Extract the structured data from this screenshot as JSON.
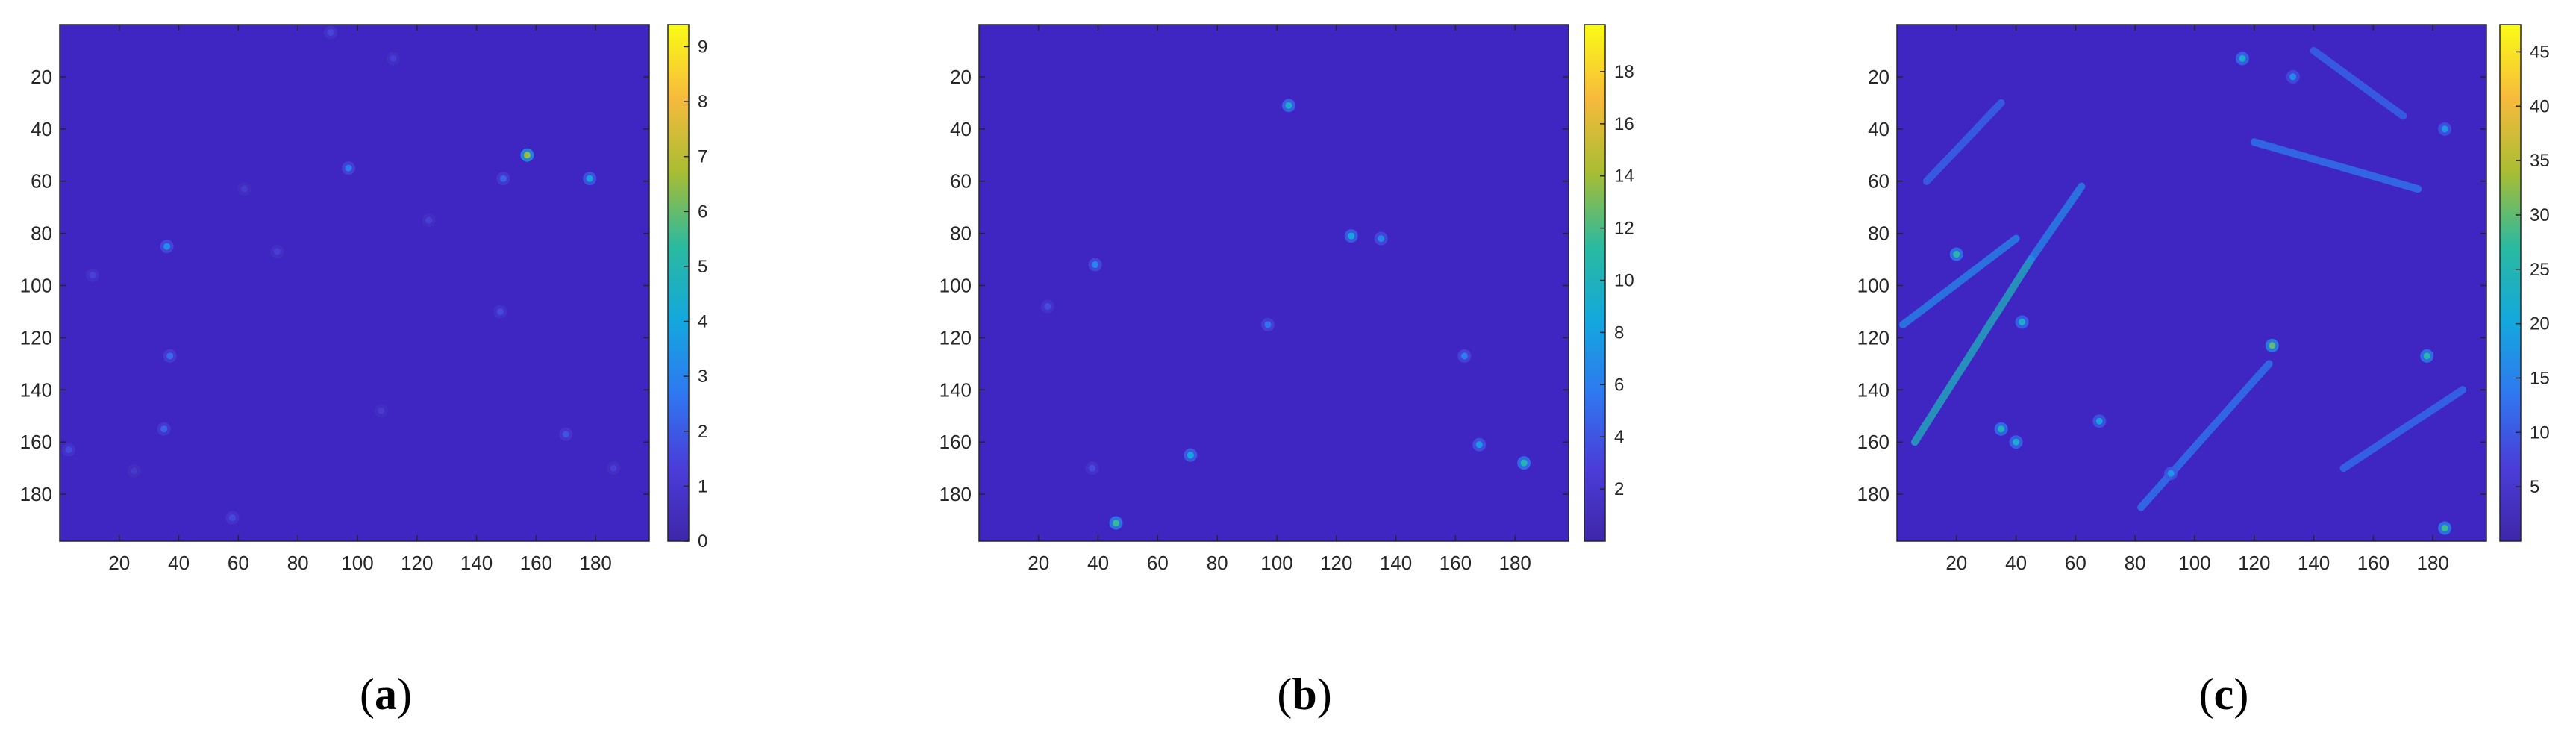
{
  "colors": {
    "background": "#3f26c2",
    "colormap": [
      "#3e26a8",
      "#4a3dd9",
      "#2f78f0",
      "#13a8dd",
      "#2bba9e",
      "#a9bd33",
      "#f7ba3c",
      "#f9fb15"
    ]
  },
  "chart_data": [
    {
      "type": "heatmap",
      "panel_label": "a",
      "x_ticks": [
        20,
        40,
        60,
        80,
        100,
        120,
        140,
        160,
        180
      ],
      "y_ticks": [
        20,
        40,
        60,
        80,
        100,
        120,
        140,
        160,
        180
      ],
      "xlim": [
        0,
        198
      ],
      "ylim": [
        0,
        198
      ],
      "colorbar": {
        "ticks": [
          0,
          1,
          2,
          3,
          4,
          5,
          6,
          7,
          8,
          9
        ],
        "range": [
          0,
          9.4
        ]
      },
      "hotspots": [
        {
          "x": 157,
          "y": 50,
          "value": 6.5
        },
        {
          "x": 178,
          "y": 59,
          "value": 3.8
        },
        {
          "x": 36,
          "y": 85,
          "value": 3.2
        },
        {
          "x": 97,
          "y": 55,
          "value": 2.8
        },
        {
          "x": 149,
          "y": 59,
          "value": 2.2
        },
        {
          "x": 37,
          "y": 127,
          "value": 2.4
        },
        {
          "x": 35,
          "y": 155,
          "value": 2.2
        },
        {
          "x": 170,
          "y": 157,
          "value": 1.8
        },
        {
          "x": 148,
          "y": 110,
          "value": 1.6
        },
        {
          "x": 58,
          "y": 189,
          "value": 1.6
        },
        {
          "x": 3,
          "y": 163,
          "value": 1.6
        },
        {
          "x": 124,
          "y": 75,
          "value": 1.3
        },
        {
          "x": 11,
          "y": 96,
          "value": 1.4
        },
        {
          "x": 73,
          "y": 87,
          "value": 1.3
        },
        {
          "x": 91,
          "y": 3,
          "value": 1.5
        },
        {
          "x": 112,
          "y": 13,
          "value": 1.2
        },
        {
          "x": 186,
          "y": 170,
          "value": 1.3
        },
        {
          "x": 108,
          "y": 148,
          "value": 1.1
        },
        {
          "x": 62,
          "y": 63,
          "value": 1.1
        },
        {
          "x": 25,
          "y": 171,
          "value": 1.0
        }
      ]
    },
    {
      "type": "heatmap",
      "panel_label": "b",
      "x_ticks": [
        20,
        40,
        60,
        80,
        100,
        120,
        140,
        160,
        180
      ],
      "y_ticks": [
        20,
        40,
        60,
        80,
        100,
        120,
        140,
        160,
        180
      ],
      "xlim": [
        0,
        198
      ],
      "ylim": [
        0,
        198
      ],
      "colorbar": {
        "ticks": [
          2,
          4,
          6,
          8,
          10,
          12,
          14,
          16,
          18
        ],
        "range": [
          0,
          19.8
        ]
      },
      "hotspots": [
        {
          "x": 104,
          "y": 31,
          "value": 9.5
        },
        {
          "x": 125,
          "y": 81,
          "value": 8.5
        },
        {
          "x": 135,
          "y": 82,
          "value": 6.5
        },
        {
          "x": 39,
          "y": 92,
          "value": 6.5
        },
        {
          "x": 97,
          "y": 115,
          "value": 5.5
        },
        {
          "x": 163,
          "y": 127,
          "value": 6.0
        },
        {
          "x": 71,
          "y": 165,
          "value": 8.5
        },
        {
          "x": 168,
          "y": 161,
          "value": 7.5
        },
        {
          "x": 183,
          "y": 168,
          "value": 10.5
        },
        {
          "x": 46,
          "y": 191,
          "value": 11.5
        },
        {
          "x": 38,
          "y": 170,
          "value": 3.5
        },
        {
          "x": 23,
          "y": 108,
          "value": 3.5
        }
      ]
    },
    {
      "type": "heatmap",
      "panel_label": "c",
      "x_ticks": [
        20,
        40,
        60,
        80,
        100,
        120,
        140,
        160,
        180
      ],
      "y_ticks": [
        20,
        40,
        60,
        80,
        100,
        120,
        140,
        160,
        180
      ],
      "xlim": [
        0,
        198
      ],
      "ylim": [
        0,
        198
      ],
      "colorbar": {
        "ticks": [
          5,
          10,
          15,
          20,
          25,
          30,
          35,
          40,
          45
        ],
        "range": [
          0,
          47.5
        ]
      },
      "hotspots": [
        {
          "x": 126,
          "y": 123,
          "value": 30
        },
        {
          "x": 178,
          "y": 127,
          "value": 26
        },
        {
          "x": 35,
          "y": 155,
          "value": 24
        },
        {
          "x": 184,
          "y": 193,
          "value": 28
        },
        {
          "x": 20,
          "y": 88,
          "value": 26
        },
        {
          "x": 116,
          "y": 13,
          "value": 22
        },
        {
          "x": 184,
          "y": 40,
          "value": 18
        },
        {
          "x": 42,
          "y": 114,
          "value": 22
        },
        {
          "x": 40,
          "y": 160,
          "value": 22
        },
        {
          "x": 68,
          "y": 152,
          "value": 19
        },
        {
          "x": 133,
          "y": 20,
          "value": 16
        },
        {
          "x": 92,
          "y": 172,
          "value": 18
        }
      ],
      "streaks": [
        {
          "x1": 6,
          "y1": 160,
          "x2": 45,
          "y2": 90,
          "value": 24
        },
        {
          "x1": 45,
          "y1": 90,
          "x2": 62,
          "y2": 62,
          "value": 16
        },
        {
          "x1": 2,
          "y1": 115,
          "x2": 40,
          "y2": 82,
          "value": 16
        },
        {
          "x1": 120,
          "y1": 45,
          "x2": 175,
          "y2": 63,
          "value": 14
        },
        {
          "x1": 82,
          "y1": 185,
          "x2": 125,
          "y2": 130,
          "value": 14
        },
        {
          "x1": 10,
          "y1": 60,
          "x2": 35,
          "y2": 30,
          "value": 12
        },
        {
          "x1": 140,
          "y1": 10,
          "x2": 170,
          "y2": 35,
          "value": 12
        },
        {
          "x1": 150,
          "y1": 170,
          "x2": 190,
          "y2": 140,
          "value": 13
        }
      ]
    }
  ],
  "captions": {
    "a": {
      "open": "(",
      "letter": "a",
      "close": ")"
    },
    "b": {
      "open": "(",
      "letter": "b",
      "close": ")"
    },
    "c": {
      "open": "(",
      "letter": "c",
      "close": ")"
    }
  }
}
